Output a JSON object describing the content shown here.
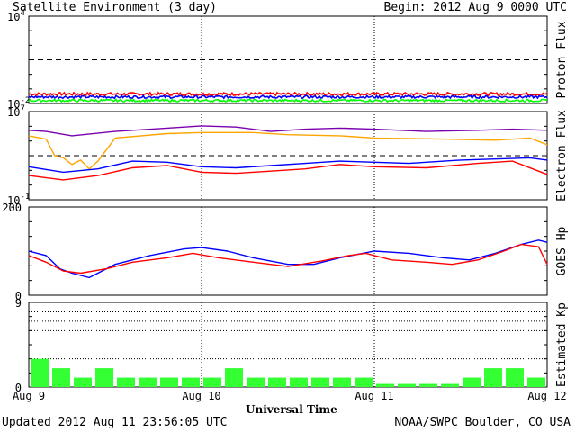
{
  "chart_data": {
    "type": "line",
    "title": "Satellite Environment (3 day)",
    "begin": "Begin:  2012 Aug 9 0000 UTC",
    "xlabel": "Universal Time",
    "updated": "Updated 2012 Aug 11 23:56:05 UTC",
    "source": "NOAA/SWPC Boulder, CO USA",
    "x_ticks": [
      "Aug 9",
      "Aug 10",
      "Aug 11",
      "Aug 12"
    ],
    "x_range_days": [
      0,
      3
    ],
    "panels": [
      {
        "ylabel": "Proton Flux",
        "scale": "log",
        "ylim_exp": [
          -2,
          4
        ],
        "tick_labels": [
          {
            "base": "10",
            "exp": "4",
            "value": 4
          },
          {
            "base": "10",
            "exp": "-2",
            "value": -2
          }
        ],
        "threshold": 1,
        "series": [
          {
            "color": "#ff0000",
            "base": -1.35,
            "noise": 0.1
          },
          {
            "color": "#0000ff",
            "base": -1.55,
            "noise": 0.09
          },
          {
            "color": "#00ff00",
            "base": -1.8,
            "noise": 0.08
          }
        ]
      },
      {
        "ylabel": "Electron Flux",
        "scale": "log",
        "ylim_exp": [
          -1,
          7
        ],
        "tick_labels": [
          {
            "base": "10",
            "exp": "7",
            "value": 7
          },
          {
            "base": "10",
            "exp": "-1",
            "value": -1
          }
        ],
        "threshold": 3,
        "series": [
          {
            "color": "#7a00b0",
            "points": [
              [
                0,
                5.3
              ],
              [
                0.1,
                5.2
              ],
              [
                0.25,
                4.8
              ],
              [
                0.5,
                5.2
              ],
              [
                0.8,
                5.5
              ],
              [
                1.0,
                5.7
              ],
              [
                1.2,
                5.6
              ],
              [
                1.4,
                5.2
              ],
              [
                1.6,
                5.4
              ],
              [
                1.8,
                5.5
              ],
              [
                2.0,
                5.4
              ],
              [
                2.3,
                5.2
              ],
              [
                2.6,
                5.3
              ],
              [
                2.8,
                5.4
              ],
              [
                3.0,
                5.3
              ]
            ]
          },
          {
            "color": "#ffa500",
            "points": [
              [
                0,
                4.8
              ],
              [
                0.1,
                4.5
              ],
              [
                0.15,
                3.0
              ],
              [
                0.2,
                2.8
              ],
              [
                0.25,
                2.2
              ],
              [
                0.3,
                2.6
              ],
              [
                0.35,
                1.8
              ],
              [
                0.4,
                2.5
              ],
              [
                0.5,
                4.6
              ],
              [
                0.8,
                5.0
              ],
              [
                1.0,
                5.1
              ],
              [
                1.3,
                5.1
              ],
              [
                1.5,
                4.9
              ],
              [
                1.8,
                4.8
              ],
              [
                2.0,
                4.6
              ],
              [
                2.4,
                4.5
              ],
              [
                2.7,
                4.4
              ],
              [
                2.9,
                4.6
              ],
              [
                3.0,
                4.0
              ]
            ]
          },
          {
            "color": "#0000ff",
            "points": [
              [
                0,
                2.0
              ],
              [
                0.2,
                1.5
              ],
              [
                0.4,
                1.8
              ],
              [
                0.6,
                2.5
              ],
              [
                0.8,
                2.4
              ],
              [
                1.0,
                2.0
              ],
              [
                1.2,
                1.9
              ],
              [
                1.4,
                2.1
              ],
              [
                1.6,
                2.3
              ],
              [
                1.8,
                2.5
              ],
              [
                2.0,
                2.4
              ],
              [
                2.2,
                2.3
              ],
              [
                2.5,
                2.6
              ],
              [
                2.7,
                2.7
              ],
              [
                2.9,
                2.8
              ],
              [
                3.0,
                2.6
              ]
            ]
          },
          {
            "color": "#ff0000",
            "points": [
              [
                0,
                1.2
              ],
              [
                0.2,
                0.8
              ],
              [
                0.4,
                1.2
              ],
              [
                0.6,
                1.9
              ],
              [
                0.8,
                2.1
              ],
              [
                1.0,
                1.5
              ],
              [
                1.2,
                1.4
              ],
              [
                1.4,
                1.6
              ],
              [
                1.6,
                1.8
              ],
              [
                1.8,
                2.2
              ],
              [
                2.0,
                2.0
              ],
              [
                2.3,
                1.9
              ],
              [
                2.6,
                2.3
              ],
              [
                2.8,
                2.5
              ],
              [
                2.95,
                1.6
              ],
              [
                3.0,
                1.3
              ]
            ]
          }
        ]
      },
      {
        "ylabel": "GOES Hp",
        "scale": "linear",
        "ylim": [
          0,
          200
        ],
        "tick_labels": [
          {
            "label": "200",
            "value": 200
          },
          {
            "label": "0",
            "value": 0
          }
        ],
        "series": [
          {
            "color": "#0000ff",
            "points": [
              [
                0,
                100
              ],
              [
                0.1,
                90
              ],
              [
                0.18,
                60
              ],
              [
                0.25,
                50
              ],
              [
                0.35,
                40
              ],
              [
                0.5,
                70
              ],
              [
                0.7,
                90
              ],
              [
                0.9,
                105
              ],
              [
                1.0,
                108
              ],
              [
                1.15,
                100
              ],
              [
                1.3,
                85
              ],
              [
                1.5,
                70
              ],
              [
                1.65,
                70
              ],
              [
                1.8,
                85
              ],
              [
                2.0,
                100
              ],
              [
                2.2,
                95
              ],
              [
                2.4,
                85
              ],
              [
                2.55,
                80
              ],
              [
                2.7,
                95
              ],
              [
                2.85,
                115
              ],
              [
                2.95,
                125
              ],
              [
                3.0,
                120
              ]
            ]
          },
          {
            "color": "#ff0000",
            "points": [
              [
                0,
                90
              ],
              [
                0.1,
                75
              ],
              [
                0.2,
                55
              ],
              [
                0.3,
                50
              ],
              [
                0.45,
                60
              ],
              [
                0.6,
                75
              ],
              [
                0.8,
                85
              ],
              [
                0.95,
                95
              ],
              [
                1.1,
                85
              ],
              [
                1.3,
                75
              ],
              [
                1.5,
                65
              ],
              [
                1.7,
                78
              ],
              [
                1.85,
                90
              ],
              [
                1.95,
                95
              ],
              [
                2.1,
                80
              ],
              [
                2.3,
                75
              ],
              [
                2.45,
                70
              ],
              [
                2.6,
                80
              ],
              [
                2.75,
                100
              ],
              [
                2.85,
                115
              ],
              [
                2.95,
                110
              ],
              [
                3.0,
                70
              ]
            ]
          }
        ]
      },
      {
        "ylabel": "Estimated Kp",
        "scale": "linear",
        "ylim": [
          0,
          9
        ],
        "tick_labels": [
          {
            "label": "9",
            "value": 9
          },
          {
            "label": "0",
            "value": 0
          }
        ],
        "series": [
          {
            "name": "Kp",
            "type": "bar",
            "color": "#33ff33",
            "values": [
              3,
              2,
              1,
              2,
              1,
              1,
              1,
              1,
              1,
              2,
              1,
              1,
              1,
              1,
              1,
              1,
              0.33,
              0.33,
              0.33,
              0.33,
              1,
              2,
              2,
              1
            ]
          }
        ]
      }
    ]
  }
}
